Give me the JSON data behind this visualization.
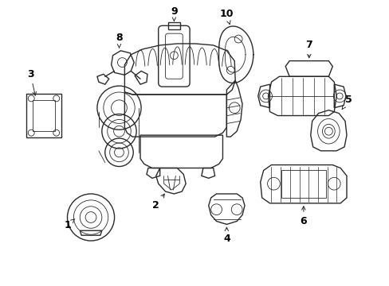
{
  "bg_color": "#ffffff",
  "line_color": "#2a2a2a",
  "label_color": "#000000",
  "figsize": [
    4.89,
    3.6
  ],
  "dpi": 100,
  "lw": 1.0,
  "lw_thin": 0.6,
  "lw_thick": 1.4
}
